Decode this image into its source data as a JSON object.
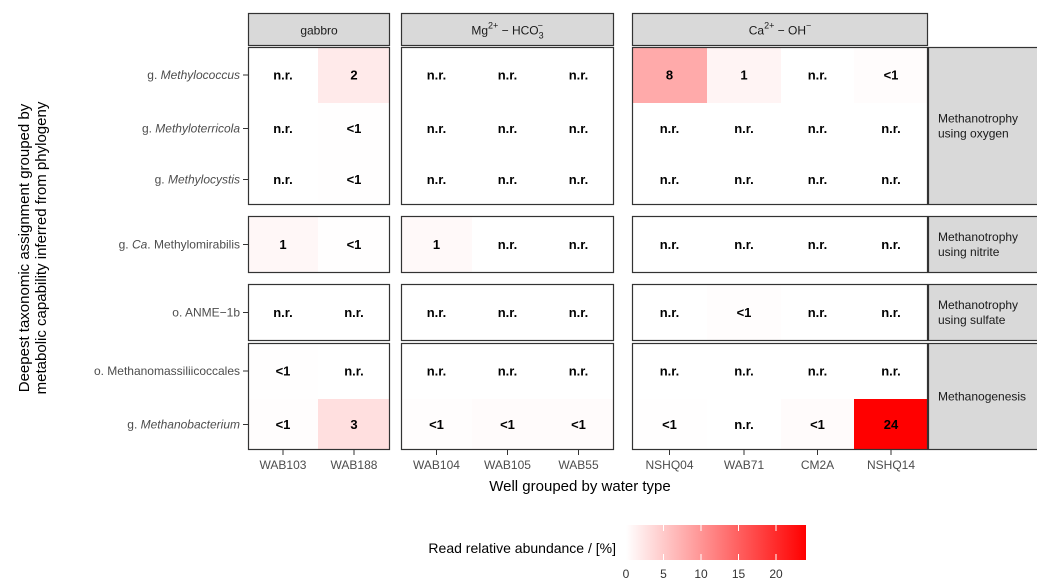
{
  "chart_data": {
    "type": "heatmap",
    "x_title": "Well grouped by water type",
    "y_title_lines": [
      "Deepest taxonomic assignment grouped by",
      "metabolic capability inferred from phylogeny"
    ],
    "col_groups": [
      {
        "label": "gabbro",
        "cols": [
          "WAB103",
          "WAB188"
        ]
      },
      {
        "label": "Mg2+ − HCO3−",
        "cols": [
          "WAB104",
          "WAB105",
          "WAB55"
        ]
      },
      {
        "label": "Ca2+ − OH−",
        "cols": [
          "NSHQ04",
          "WAB71",
          "CM2A",
          "NSHQ14"
        ]
      }
    ],
    "row_groups": [
      {
        "label_lines": [
          "Methanotrophy",
          "using oxygen"
        ],
        "rows": [
          {
            "prefix": "g. ",
            "italic": "Methylococcus",
            "suffix": ""
          },
          {
            "prefix": "g. ",
            "italic": "Methyloterricola",
            "suffix": ""
          },
          {
            "prefix": "g. ",
            "italic": "Methylocystis",
            "suffix": ""
          }
        ]
      },
      {
        "label_lines": [
          "Methanotrophy",
          "using nitrite"
        ],
        "rows": [
          {
            "prefix": "g. ",
            "italic": "Ca",
            "suffix": ". Methylomirabilis"
          }
        ]
      },
      {
        "label_lines": [
          "Methanotrophy",
          "using sulfate"
        ],
        "rows": [
          {
            "prefix": "o. ANME−1b",
            "italic": "",
            "suffix": ""
          }
        ]
      },
      {
        "label_lines": [
          "Methanogenesis"
        ],
        "rows": [
          {
            "prefix": "o. Methanomassiliicoccales",
            "italic": "",
            "suffix": ""
          },
          {
            "prefix": "g. ",
            "italic": "Methanobacterium",
            "suffix": ""
          }
        ]
      }
    ],
    "labels": [
      [
        "n.r.",
        "2",
        "n.r.",
        "n.r.",
        "n.r.",
        "8",
        "1",
        "n.r.",
        "<1"
      ],
      [
        "n.r.",
        "<1",
        "n.r.",
        "n.r.",
        "n.r.",
        "n.r.",
        "n.r.",
        "n.r.",
        "n.r."
      ],
      [
        "n.r.",
        "<1",
        "n.r.",
        "n.r.",
        "n.r.",
        "n.r.",
        "n.r.",
        "n.r.",
        "n.r."
      ],
      [
        "1",
        "<1",
        "1",
        "n.r.",
        "n.r.",
        "n.r.",
        "n.r.",
        "n.r.",
        "n.r."
      ],
      [
        "n.r.",
        "n.r.",
        "n.r.",
        "n.r.",
        "n.r.",
        "n.r.",
        "<1",
        "n.r.",
        "n.r."
      ],
      [
        "<1",
        "n.r.",
        "n.r.",
        "n.r.",
        "n.r.",
        "n.r.",
        "n.r.",
        "n.r.",
        "n.r."
      ],
      [
        "<1",
        "3",
        "<1",
        "<1",
        "<1",
        "<1",
        "n.r.",
        "<1",
        "24"
      ]
    ],
    "values": [
      [
        0,
        2,
        0,
        0,
        0,
        8,
        1,
        0,
        0.3
      ],
      [
        0,
        0.1,
        0,
        0,
        0,
        0,
        0,
        0,
        0
      ],
      [
        0,
        0.1,
        0,
        0,
        0,
        0,
        0,
        0,
        0
      ],
      [
        0.8,
        0.1,
        0.6,
        0,
        0,
        0,
        0,
        0,
        0
      ],
      [
        0,
        0,
        0,
        0,
        0,
        0,
        0.2,
        0,
        0
      ],
      [
        0.1,
        0,
        0,
        0,
        0,
        0,
        0,
        0,
        0
      ],
      [
        0.2,
        3,
        0.2,
        0.4,
        0.4,
        0.1,
        0,
        0.4,
        24
      ]
    ],
    "color_scale": {
      "low": "#ffffff",
      "high": "#ff0000",
      "min": 0,
      "max": 24
    },
    "legend": {
      "title": "Read relative abundance / [%]",
      "ticks": [
        0,
        5,
        10,
        15,
        20
      ]
    }
  }
}
